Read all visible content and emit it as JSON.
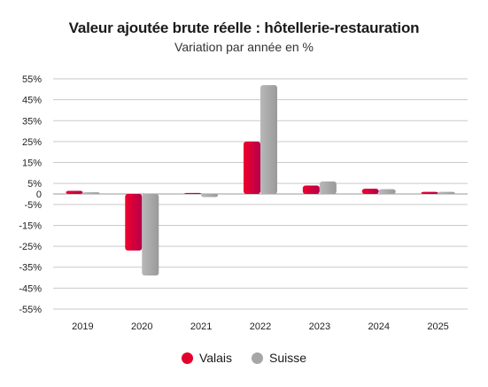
{
  "chart_data": {
    "type": "bar",
    "title": "Valeur ajoutée brute réelle : hôtellerie-restauration",
    "subtitle": "Variation par année en %",
    "categories": [
      "2019",
      "2020",
      "2021",
      "2022",
      "2023",
      "2024",
      "2025"
    ],
    "series": [
      {
        "name": "Valais",
        "values": [
          1.5,
          -27,
          0.5,
          25,
          4,
          2.5,
          1
        ],
        "color": "#e4002b"
      },
      {
        "name": "Suisse",
        "values": [
          0.8,
          -39,
          -1.5,
          52,
          6,
          2.3,
          1
        ],
        "color": "#a6a6a6"
      }
    ],
    "ylim": [
      -55,
      55
    ],
    "yticks": [
      55,
      45,
      35,
      25,
      15,
      5,
      0,
      -5,
      -15,
      -25,
      -35,
      -45,
      -55
    ],
    "ytick_labels": [
      "55%",
      "45%",
      "35%",
      "25%",
      "15%",
      "5%",
      "0",
      "-5%",
      "-15%",
      "-25%",
      "-35%",
      "-45%",
      "-55%"
    ],
    "grid": true,
    "legend_position": "bottom-center"
  }
}
